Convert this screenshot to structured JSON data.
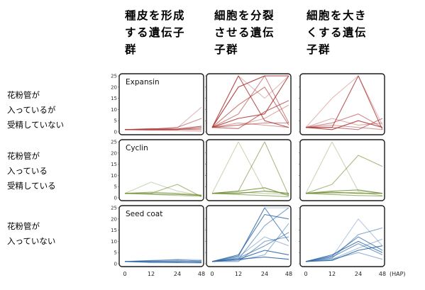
{
  "column_headers": [
    [
      "種皮を形成",
      "する遺伝子",
      "群"
    ],
    [
      "細胞を分裂",
      "させる遺伝",
      "子群"
    ],
    [
      "細胞を大き",
      "くする遺伝",
      "子群"
    ]
  ],
  "row_labels": [
    [
      "花粉管が",
      "入っているが",
      "受精していない"
    ],
    [
      "花粉管が",
      "入っている",
      "受精している"
    ],
    [
      "花粉管が",
      "入っていない"
    ]
  ],
  "x_axis": {
    "ticks": [
      "0",
      "12",
      "24",
      "48"
    ],
    "unit": "(HAP)"
  },
  "y_axis": {
    "ticks": [
      "0",
      "5",
      "10",
      "15",
      "20",
      "25"
    ]
  },
  "panel_titles": [
    "Expansin",
    "Cyclin",
    "Seed coat"
  ],
  "colors": {
    "Expansin": "#b03a3a",
    "Cyclin": "#6d8a2e",
    "Seed coat": "#2f68a8"
  },
  "chart_data": {
    "type": "line",
    "x": [
      0,
      12,
      24,
      48
    ],
    "ylim": [
      0,
      25
    ],
    "panels": [
      {
        "row": 0,
        "col": 0,
        "title": "Expansin",
        "series": [
          {
            "values": [
              1,
              1.3,
              1.8,
              11
            ]
          },
          {
            "values": [
              1,
              1.2,
              2,
              6
            ]
          },
          {
            "values": [
              1,
              1,
              1.3,
              2.5
            ]
          },
          {
            "values": [
              1,
              0.8,
              0.6,
              0.3
            ]
          },
          {
            "values": [
              1,
              1.5,
              1.2,
              1
            ]
          },
          {
            "values": [
              1,
              0.9,
              1,
              1.8
            ]
          }
        ]
      },
      {
        "row": 0,
        "col": 1,
        "series": [
          {
            "values": [
              2,
              25,
              15,
              25
            ]
          },
          {
            "values": [
              2,
              8,
              25,
              4
            ]
          },
          {
            "values": [
              2,
              25,
              5,
              2
            ]
          },
          {
            "values": [
              2,
              3,
              6,
              12
            ]
          },
          {
            "values": [
              2,
              12,
              20,
              3
            ]
          },
          {
            "values": [
              2,
              6,
              8,
              25
            ]
          },
          {
            "values": [
              2,
              4,
              3,
              2
            ]
          },
          {
            "values": [
              2,
              1.5,
              9,
              14
            ]
          },
          {
            "values": [
              2,
              20,
              25,
              25
            ]
          },
          {
            "values": [
              2,
              3,
              4,
              4
            ]
          }
        ]
      },
      {
        "row": 0,
        "col": 2,
        "series": [
          {
            "values": [
              2,
              15,
              25,
              3
            ]
          },
          {
            "values": [
              2,
              4,
              8,
              2
            ]
          },
          {
            "values": [
              2,
              2,
              25,
              1
            ]
          },
          {
            "values": [
              2,
              6,
              3,
              4
            ]
          },
          {
            "values": [
              2,
              2,
              1,
              6
            ]
          },
          {
            "values": [
              2,
              1,
              5,
              2
            ]
          },
          {
            "values": [
              2,
              3,
              2,
              1
            ]
          }
        ]
      },
      {
        "row": 1,
        "col": 0,
        "title": "Cyclin",
        "series": [
          {
            "values": [
              2,
              7,
              3,
              1
            ]
          },
          {
            "values": [
              2,
              2,
              6,
              0.5
            ]
          },
          {
            "values": [
              2,
              1.8,
              1.5,
              1
            ]
          },
          {
            "values": [
              2,
              1.5,
              1,
              0.6
            ]
          },
          {
            "values": [
              2,
              2.5,
              2,
              1.2
            ]
          }
        ]
      },
      {
        "row": 1,
        "col": 1,
        "series": [
          {
            "values": [
              2,
              25,
              3,
              2
            ]
          },
          {
            "values": [
              2,
              3,
              25,
              1
            ]
          },
          {
            "values": [
              2,
              3,
              4.5,
              1
            ]
          },
          {
            "values": [
              2,
              2.5,
              2,
              1.5
            ]
          },
          {
            "values": [
              2,
              1.5,
              1,
              0.5
            ]
          },
          {
            "values": [
              2,
              2,
              3,
              2
            ]
          }
        ]
      },
      {
        "row": 1,
        "col": 2,
        "series": [
          {
            "values": [
              2,
              25,
              3,
              2
            ]
          },
          {
            "values": [
              2,
              6,
              19,
              14
            ]
          },
          {
            "values": [
              2,
              3,
              3.5,
              2
            ]
          },
          {
            "values": [
              2,
              2,
              2.5,
              1
            ]
          },
          {
            "values": [
              2,
              1.5,
              1,
              0.8
            ]
          },
          {
            "values": [
              2,
              2.5,
              2,
              2
            ]
          }
        ]
      },
      {
        "row": 2,
        "col": 0,
        "title": "Seed coat",
        "series": [
          {
            "values": [
              1,
              1.2,
              2,
              1.8
            ]
          },
          {
            "values": [
              1,
              1.5,
              1.8,
              1.2
            ]
          },
          {
            "values": [
              1,
              1,
              1.3,
              0.8
            ]
          },
          {
            "values": [
              1,
              0.8,
              1,
              0.9
            ]
          },
          {
            "values": [
              1,
              1.3,
              0.9,
              1.4
            ]
          },
          {
            "values": [
              1,
              0.6,
              0.5,
              0.4
            ]
          }
        ]
      },
      {
        "row": 2,
        "col": 1,
        "series": [
          {
            "values": [
              1,
              3,
              25,
              25
            ]
          },
          {
            "values": [
              1,
              2,
              17,
              25
            ]
          },
          {
            "values": [
              1,
              4,
              22,
              20
            ]
          },
          {
            "values": [
              1,
              3,
              12,
              8
            ]
          },
          {
            "values": [
              1,
              2.5,
              8,
              14
            ]
          },
          {
            "values": [
              1,
              2,
              6,
              4
            ]
          },
          {
            "values": [
              1,
              1.5,
              4,
              18
            ]
          },
          {
            "values": [
              1,
              3.5,
              26,
              10
            ]
          },
          {
            "values": [
              1,
              2,
              3,
              2
            ]
          },
          {
            "values": [
              1,
              1,
              10,
              12
            ]
          }
        ]
      },
      {
        "row": 2,
        "col": 2,
        "series": [
          {
            "values": [
              1,
              3,
              20,
              8
            ]
          },
          {
            "values": [
              1,
              2.5,
              13,
              16
            ]
          },
          {
            "values": [
              1,
              4,
              10,
              5
            ]
          },
          {
            "values": [
              1,
              2,
              7,
              11
            ]
          },
          {
            "values": [
              1,
              3,
              9,
              4
            ]
          },
          {
            "values": [
              1,
              1.5,
              6,
              8
            ]
          },
          {
            "values": [
              1,
              2,
              5,
              2
            ]
          },
          {
            "values": [
              1,
              3.5,
              12,
              6
            ]
          }
        ]
      }
    ]
  }
}
